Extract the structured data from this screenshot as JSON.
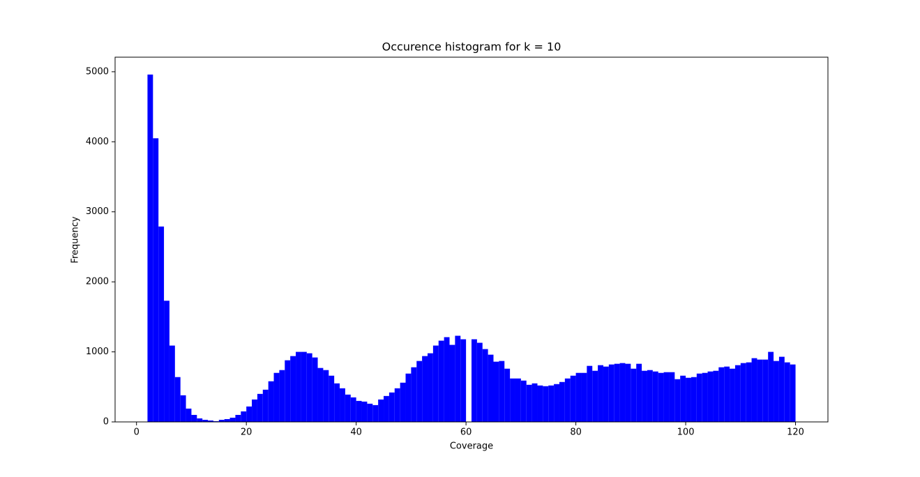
{
  "chart_data": {
    "type": "histogram",
    "title": "Occurence histogram for k = 10",
    "xlabel": "Coverage",
    "ylabel": "Frequency",
    "color": "#0000ff",
    "bins": [
      2,
      3,
      4,
      5,
      6,
      7,
      8,
      9,
      10,
      11,
      12,
      13,
      14,
      15,
      16,
      17,
      18,
      19,
      20,
      21,
      22,
      23,
      24,
      25,
      26,
      27,
      28,
      29,
      30,
      31,
      32,
      33,
      34,
      35,
      36,
      37,
      38,
      39,
      40,
      41,
      42,
      43,
      44,
      45,
      46,
      47,
      48,
      49,
      50,
      51,
      52,
      53,
      54,
      55,
      56,
      57,
      58,
      59,
      60,
      61,
      62,
      63,
      64,
      65,
      66,
      67,
      68,
      69,
      70,
      71,
      72,
      73,
      74,
      75,
      76,
      77,
      78,
      79,
      80,
      81,
      82,
      83,
      84,
      85,
      86,
      87,
      88,
      89,
      90,
      91,
      92,
      93,
      94,
      95,
      96,
      97,
      98,
      99,
      100,
      101,
      102,
      103,
      104,
      105,
      106,
      107,
      108,
      109,
      110,
      111,
      112,
      113,
      114,
      115,
      116,
      117,
      118,
      119,
      120
    ],
    "values": [
      4960,
      4050,
      2790,
      1730,
      1090,
      640,
      380,
      190,
      100,
      50,
      30,
      20,
      10,
      30,
      40,
      60,
      100,
      150,
      220,
      320,
      400,
      460,
      580,
      700,
      740,
      880,
      940,
      1000,
      1000,
      980,
      920,
      770,
      740,
      660,
      550,
      480,
      390,
      350,
      300,
      290,
      260,
      240,
      320,
      370,
      420,
      480,
      560,
      690,
      780,
      870,
      940,
      980,
      1090,
      1160,
      1210,
      1100,
      1230,
      1180,
      0,
      1180,
      1130,
      1040,
      960,
      860,
      870,
      760,
      620,
      620,
      590,
      530,
      550,
      520,
      510,
      520,
      540,
      570,
      620,
      660,
      700,
      700,
      800,
      730,
      810,
      790,
      820,
      830,
      840,
      830,
      760,
      830,
      730,
      740,
      720,
      700,
      710,
      710,
      610,
      660,
      630,
      640,
      690,
      700,
      720,
      730,
      780,
      790,
      760,
      810,
      840,
      850,
      910,
      890,
      890,
      1000,
      870,
      930,
      850,
      820
    ],
    "xlim": [
      -3.9,
      125.9
    ],
    "xticks": [
      0,
      20,
      40,
      60,
      80,
      100,
      120
    ],
    "ylim": [
      0,
      5208
    ],
    "yticks": [
      0,
      1000,
      2000,
      3000,
      4000,
      5000
    ]
  }
}
